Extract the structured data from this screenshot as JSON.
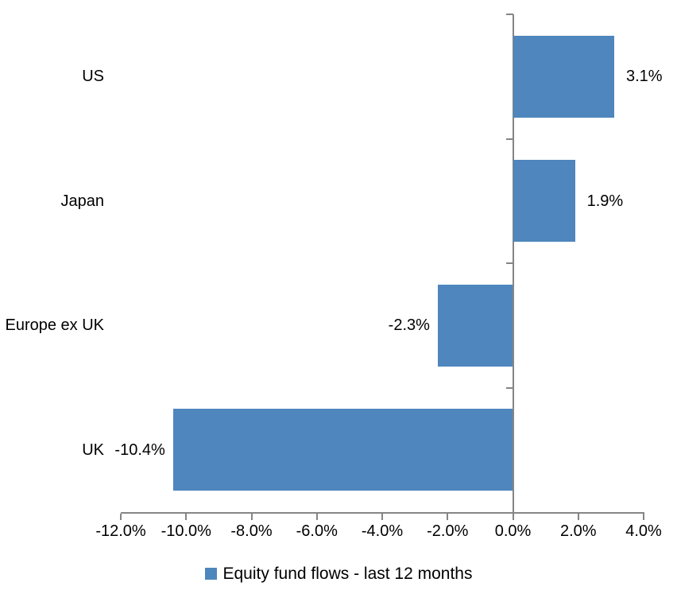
{
  "chart_data": {
    "type": "bar",
    "orientation": "horizontal",
    "title": "",
    "categories": [
      "US",
      "Japan",
      "Europe ex UK",
      "UK"
    ],
    "series": [
      {
        "name": "Equity fund flows - last 12 months",
        "values": [
          3.1,
          1.9,
          -2.3,
          -10.4
        ],
        "data_labels": [
          "3.1%",
          "1.9%",
          "-2.3%",
          "-10.4%"
        ],
        "color": "#4E86BD"
      }
    ],
    "xlabel": "",
    "ylabel": "",
    "xlim": [
      -12,
      4
    ],
    "x_tick_step": 2,
    "x_tick_labels": [
      "-12.0%",
      "-10.0%",
      "-8.0%",
      "-6.0%",
      "-4.0%",
      "-2.0%",
      "0.0%",
      "2.0%",
      "4.0%"
    ],
    "grid": "off",
    "legend_position": "bottom",
    "colors": {
      "bar": "#4E86BD",
      "axis": "#858585",
      "text": "#000000",
      "background": "#FFFFFF"
    }
  },
  "legend": {
    "label": "Equity fund flows - last 12 months"
  }
}
